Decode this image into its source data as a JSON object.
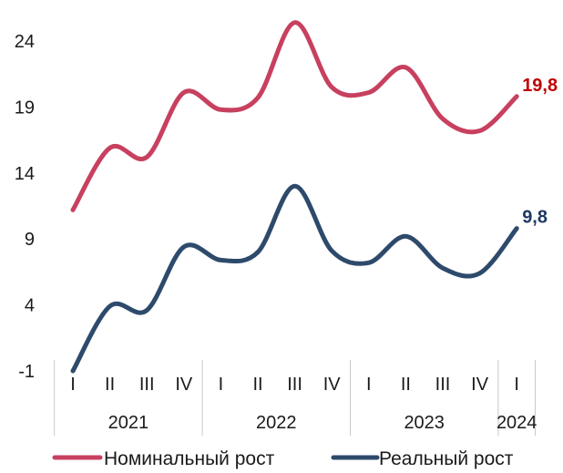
{
  "chart_data": {
    "type": "line",
    "x": [
      "I",
      "II",
      "III",
      "IV",
      "I",
      "II",
      "III",
      "IV",
      "I",
      "II",
      "III",
      "IV",
      "I"
    ],
    "years": [
      {
        "label": "2021",
        "quarters": 4
      },
      {
        "label": "2022",
        "quarters": 4
      },
      {
        "label": "2023",
        "quarters": 4
      },
      {
        "label": "2024",
        "quarters": 1
      }
    ],
    "yticks": [
      "24",
      "19",
      "14",
      "9",
      "4",
      "-1"
    ],
    "ylim": [
      -1,
      24
    ],
    "series": [
      {
        "name": "Номинальный рост",
        "color": "#c8405f",
        "values": [
          11.2,
          15.9,
          15.2,
          20.1,
          18.8,
          19.7,
          25.4,
          20.5,
          20.1,
          22.0,
          18.1,
          17.2,
          19.8
        ],
        "end_label": "19,8",
        "end_label_color": "#c00000"
      },
      {
        "name": "Реальный рост",
        "color": "#2e4a6b",
        "values": [
          -1.0,
          3.9,
          3.6,
          8.4,
          7.4,
          8.0,
          13.0,
          8.1,
          7.2,
          9.2,
          6.8,
          6.4,
          9.8
        ],
        "end_label": "9,8",
        "end_label_color": "#1f3864"
      }
    ],
    "grid": false,
    "legend_position": "bottom"
  }
}
